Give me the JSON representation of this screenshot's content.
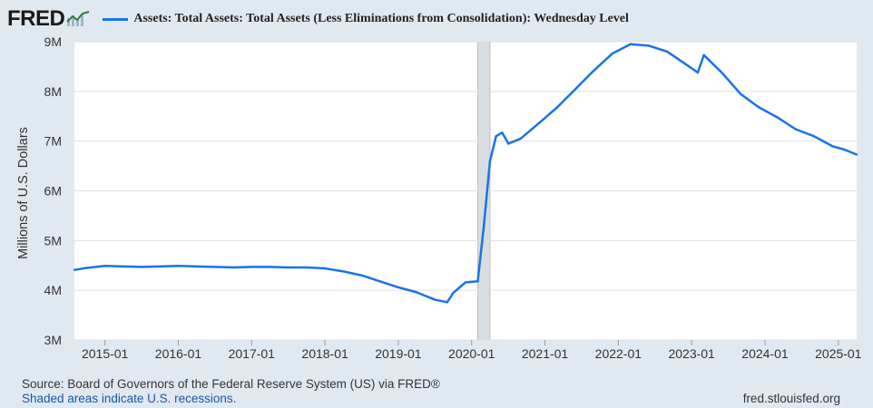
{
  "header": {
    "logo_text": "FRED",
    "legend_label": "Assets: Total Assets: Total Assets (Less Eliminations from Consolidation): Wednesday Level"
  },
  "colors": {
    "series": "#1a73e8",
    "background": "#e1e9f0",
    "plot": "#ffffff",
    "recession": "#d8dde1"
  },
  "footer": {
    "source": "Source: Board of Governors of the Federal Reserve System (US) via FRED®",
    "recession_note": "Shaded areas indicate U.S. recessions.",
    "site": "fred.stlouisfed.org"
  },
  "chart_data": {
    "type": "line",
    "title": "",
    "ylabel": "Millions of U.S. Dollars",
    "xlabel": "",
    "ylim": [
      3000000,
      9000000
    ],
    "y_ticks": [
      {
        "value": 3000000,
        "label": "3M"
      },
      {
        "value": 4000000,
        "label": "4M"
      },
      {
        "value": 5000000,
        "label": "5M"
      },
      {
        "value": 6000000,
        "label": "6M"
      },
      {
        "value": 7000000,
        "label": "7M"
      },
      {
        "value": 8000000,
        "label": "8M"
      },
      {
        "value": 9000000,
        "label": "9M"
      }
    ],
    "xlim": [
      "2014-08",
      "2025-04"
    ],
    "x_ticks": [
      "2015-01",
      "2016-01",
      "2017-01",
      "2018-01",
      "2019-01",
      "2020-01",
      "2021-01",
      "2022-01",
      "2023-01",
      "2024-01",
      "2025-01"
    ],
    "grid": true,
    "recessions": [
      {
        "start": "2020-02",
        "end": "2020-04"
      }
    ],
    "series": [
      {
        "name": "Assets: Total Assets: Total Assets (Less Eliminations from Consolidation): Wednesday Level",
        "points": [
          [
            "2014-08",
            4410000
          ],
          [
            "2014-10",
            4450000
          ],
          [
            "2015-01",
            4490000
          ],
          [
            "2015-04",
            4480000
          ],
          [
            "2015-07",
            4470000
          ],
          [
            "2015-10",
            4480000
          ],
          [
            "2016-01",
            4490000
          ],
          [
            "2016-04",
            4480000
          ],
          [
            "2016-07",
            4470000
          ],
          [
            "2016-10",
            4460000
          ],
          [
            "2017-01",
            4470000
          ],
          [
            "2017-04",
            4470000
          ],
          [
            "2017-07",
            4460000
          ],
          [
            "2017-10",
            4460000
          ],
          [
            "2018-01",
            4440000
          ],
          [
            "2018-04",
            4380000
          ],
          [
            "2018-07",
            4300000
          ],
          [
            "2018-10",
            4180000
          ],
          [
            "2019-01",
            4060000
          ],
          [
            "2019-04",
            3960000
          ],
          [
            "2019-07",
            3810000
          ],
          [
            "2019-09",
            3760000
          ],
          [
            "2019-10",
            3950000
          ],
          [
            "2019-12",
            4160000
          ],
          [
            "2020-01",
            4170000
          ],
          [
            "2020-02",
            4180000
          ],
          [
            "2020-03",
            5300000
          ],
          [
            "2020-04",
            6600000
          ],
          [
            "2020-05",
            7100000
          ],
          [
            "2020-06",
            7170000
          ],
          [
            "2020-07",
            6950000
          ],
          [
            "2020-09",
            7050000
          ],
          [
            "2020-12",
            7360000
          ],
          [
            "2021-03",
            7680000
          ],
          [
            "2021-06",
            8050000
          ],
          [
            "2021-09",
            8420000
          ],
          [
            "2021-12",
            8760000
          ],
          [
            "2022-03",
            8950000
          ],
          [
            "2022-06",
            8920000
          ],
          [
            "2022-09",
            8800000
          ],
          [
            "2022-12",
            8550000
          ],
          [
            "2023-02",
            8380000
          ],
          [
            "2023-03",
            8730000
          ],
          [
            "2023-06",
            8370000
          ],
          [
            "2023-09",
            7950000
          ],
          [
            "2023-12",
            7680000
          ],
          [
            "2024-03",
            7480000
          ],
          [
            "2024-06",
            7240000
          ],
          [
            "2024-09",
            7100000
          ],
          [
            "2024-12",
            6900000
          ],
          [
            "2025-02",
            6830000
          ],
          [
            "2025-04",
            6730000
          ]
        ]
      }
    ]
  }
}
